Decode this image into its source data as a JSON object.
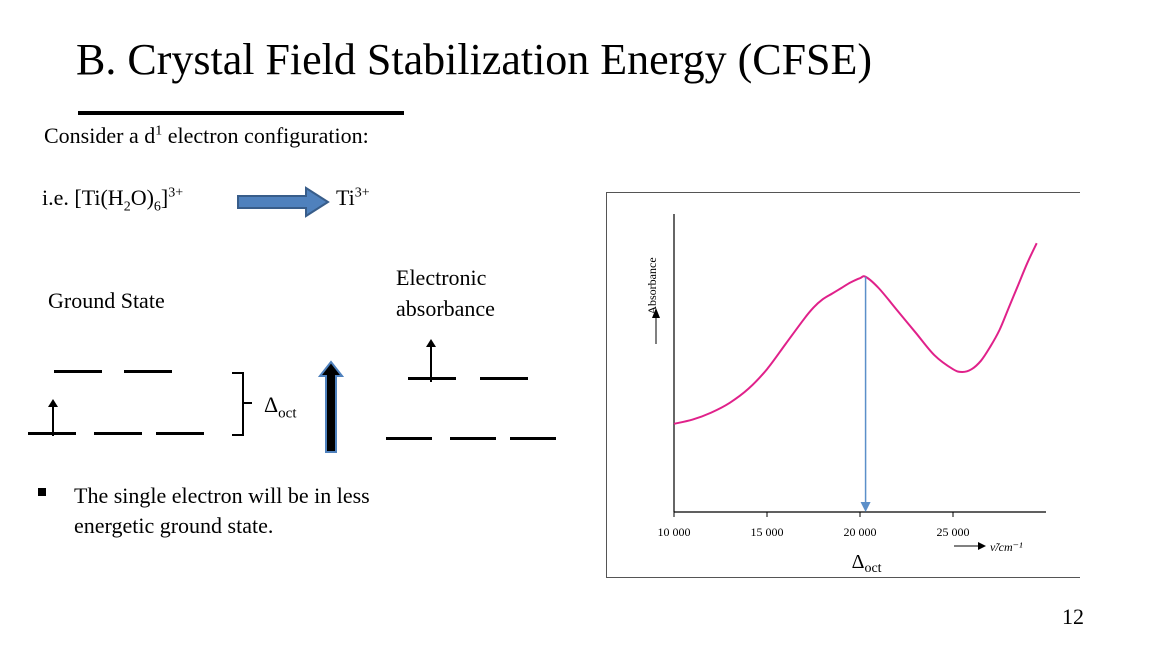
{
  "slide": {
    "title": "B. Crystal Field Stabilization Energy (CFSE)",
    "consider_text": "Consider a d",
    "consider_sup": "1",
    "consider_tail": " electron configuration:",
    "example_prefix": "i.e. [Ti(H",
    "example_sub1": "2",
    "example_mid": "O)",
    "example_sub2": "6",
    "example_close": "]",
    "example_sup": "3+",
    "ion_label": "Ti",
    "ion_sup": "3+",
    "ground_state_label": "Ground State",
    "absorbance_label_1": "Electronic",
    "absorbance_label_2": "absorbance",
    "delta_symbol": "Δ",
    "delta_sub": "oct",
    "bullet_line_1": "The single electron will be in less",
    "bullet_line_2": "energetic ground state.",
    "page_number": "12"
  },
  "colors": {
    "arrow_fill": "#4f81bd",
    "arrow_stroke": "#385d8a",
    "curve": "#e0218a",
    "marker": "#5b8fc9",
    "axis": "#000000"
  },
  "chart_data": {
    "type": "line",
    "title": "",
    "xlabel": "ν̃/cm⁻¹",
    "ylabel": "Absorbance",
    "x_ticks": [
      "10 000",
      "15 000",
      "20 000",
      "25 000"
    ],
    "xlim": [
      10000,
      30000
    ],
    "ylim": [
      0,
      1
    ],
    "annotation": {
      "x": 20300,
      "label_symbol": "Δ",
      "label_sub": "oct"
    },
    "series": [
      {
        "x": [
          10000,
          11000,
          12000,
          13000,
          14000,
          15000,
          16000,
          17000,
          17500,
          18000,
          18500,
          19000,
          19500,
          20000,
          20300,
          21000,
          22000,
          23000,
          24000,
          25000,
          25500,
          26000,
          26500,
          27000,
          27500,
          28000,
          28500,
          29000,
          29500
        ],
        "y": [
          0.315,
          0.33,
          0.355,
          0.39,
          0.44,
          0.51,
          0.6,
          0.69,
          0.73,
          0.76,
          0.78,
          0.8,
          0.82,
          0.835,
          0.84,
          0.8,
          0.72,
          0.64,
          0.56,
          0.51,
          0.5,
          0.51,
          0.54,
          0.59,
          0.65,
          0.73,
          0.81,
          0.89,
          0.96
        ]
      }
    ]
  }
}
